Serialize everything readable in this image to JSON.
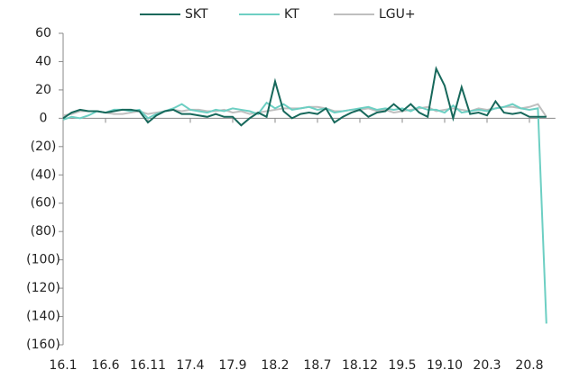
{
  "chart_data": {
    "type": "line",
    "categories": [
      "16.1",
      null,
      null,
      null,
      null,
      "16.6",
      null,
      null,
      null,
      null,
      "16.11",
      null,
      null,
      null,
      null,
      "17.4",
      null,
      null,
      null,
      null,
      "17.9",
      null,
      null,
      null,
      null,
      "18.2",
      null,
      null,
      null,
      null,
      "18.7",
      null,
      null,
      null,
      null,
      "18.12",
      null,
      null,
      null,
      null,
      "19.5",
      null,
      null,
      null,
      null,
      "19.10",
      null,
      null,
      null,
      null,
      "20.3",
      null,
      null,
      null,
      null,
      "20.8",
      null,
      null
    ],
    "series": [
      {
        "name": "SKT",
        "color": "#17685b",
        "values": [
          0,
          4,
          6,
          5,
          5,
          4,
          5,
          6,
          6,
          5,
          -3,
          2,
          5,
          6,
          3,
          3,
          2,
          1,
          3,
          1,
          1,
          -5,
          0,
          4,
          1,
          26,
          5,
          0,
          3,
          4,
          3,
          7,
          -3,
          1,
          4,
          6,
          1,
          4,
          5,
          10,
          5,
          10,
          4,
          1,
          35,
          23,
          0,
          22,
          3,
          4,
          2,
          12,
          4,
          3,
          4,
          1,
          1,
          1
        ]
      },
      {
        "name": "KT",
        "color": "#6dcfc3",
        "values": [
          -1,
          1,
          0,
          2,
          5,
          4,
          6,
          6,
          5,
          6,
          0,
          3,
          5,
          7,
          10,
          6,
          5,
          4,
          6,
          5,
          7,
          6,
          5,
          3,
          11,
          7,
          10,
          6,
          7,
          8,
          6,
          7,
          4,
          5,
          6,
          7,
          8,
          6,
          7,
          6,
          7,
          5,
          8,
          6,
          6,
          4,
          9,
          4,
          5,
          6,
          5,
          7,
          8,
          10,
          7,
          6,
          7,
          -145
        ]
      },
      {
        "name": "LGU+",
        "color": "#bfbfbf",
        "values": [
          2,
          3,
          5,
          5,
          5,
          4,
          3,
          3,
          4,
          5,
          3,
          4,
          5,
          6,
          5,
          6,
          6,
          5,
          5,
          6,
          4,
          5,
          3,
          4,
          5,
          6,
          7,
          7,
          7,
          8,
          8,
          7,
          5,
          5,
          6,
          6,
          7,
          5,
          6,
          4,
          5,
          6,
          7,
          8,
          5,
          6,
          7,
          6,
          5,
          7,
          6,
          7,
          8,
          8,
          7,
          8,
          10,
          1
        ]
      }
    ],
    "ylim": [
      -160,
      60
    ],
    "yticks": [
      {
        "value": -160,
        "label": "(160)"
      },
      {
        "value": -140,
        "label": "(140)"
      },
      {
        "value": -120,
        "label": "(120)"
      },
      {
        "value": -100,
        "label": "(100)"
      },
      {
        "value": -80,
        "label": "(80)"
      },
      {
        "value": -60,
        "label": "(60)"
      },
      {
        "value": -40,
        "label": "(40)"
      },
      {
        "value": -20,
        "label": "(20)"
      },
      0,
      20,
      40,
      60
    ]
  }
}
